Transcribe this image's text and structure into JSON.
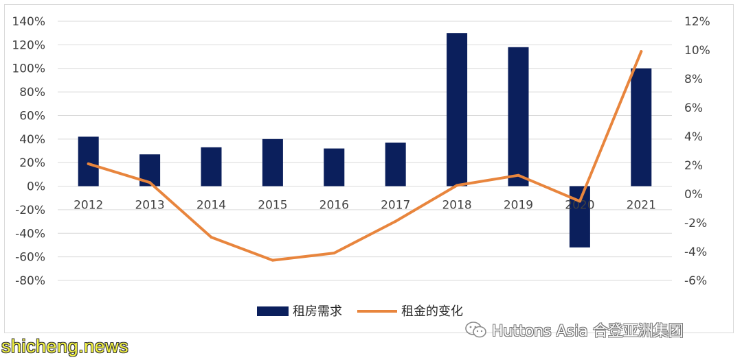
{
  "chart_data": {
    "type": "bar",
    "categories": [
      "2012",
      "2013",
      "2014",
      "2015",
      "2016",
      "2017",
      "2018",
      "2019",
      "2020",
      "2021"
    ],
    "series": [
      {
        "name": "租房需求",
        "kind": "bar",
        "axis": "left",
        "color": "#0b1f5c",
        "values": [
          42,
          27,
          33,
          40,
          32,
          37,
          130,
          118,
          -52,
          100
        ]
      },
      {
        "name": "租金的变化",
        "kind": "line",
        "axis": "right",
        "color": "#e8853d",
        "values": [
          2.1,
          0.8,
          -3.0,
          -4.6,
          -4.1,
          -1.9,
          0.6,
          1.3,
          -0.5,
          9.9
        ]
      }
    ],
    "y_left": {
      "lim": [
        -80,
        140
      ],
      "ticks": [
        140,
        120,
        100,
        80,
        60,
        40,
        20,
        0,
        -20,
        -40,
        -60,
        -80
      ],
      "tick_labels": [
        "140%",
        "120%",
        "100%",
        "80%",
        "60%",
        "40%",
        "20%",
        "0%",
        "-20%",
        "-40%",
        "-60%",
        "-80%"
      ]
    },
    "y_right": {
      "lim": [
        -6,
        12
      ],
      "ticks": [
        12,
        10,
        8,
        6,
        4,
        2,
        0,
        -2,
        -4,
        -6
      ],
      "tick_labels": [
        "12%",
        "10%",
        "8%",
        "6%",
        "4%",
        "2%",
        "0%",
        "-2%",
        "-4%",
        "-6%"
      ]
    },
    "grid": true,
    "legend_position": "bottom-center"
  },
  "watermarks": {
    "site": "shicheng.news",
    "brand": "Huttons Asia 合登亚洲集团"
  }
}
